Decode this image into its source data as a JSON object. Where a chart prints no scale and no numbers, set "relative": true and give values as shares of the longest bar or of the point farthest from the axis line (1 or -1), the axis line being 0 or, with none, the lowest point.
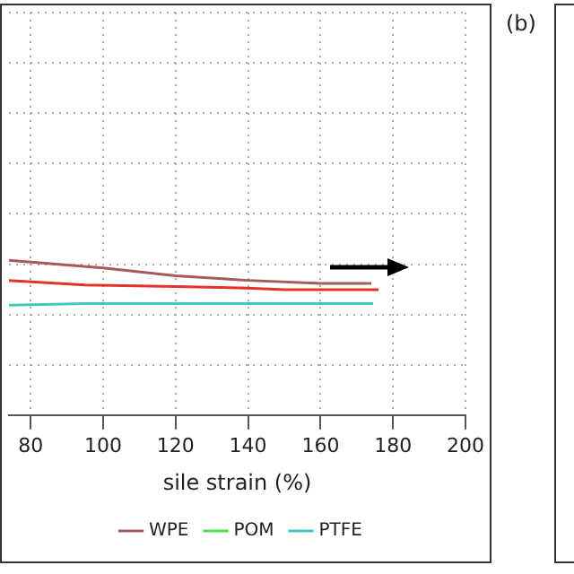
{
  "chart_data": {
    "type": "line",
    "relative": true,
    "xlabel": "sile strain (%)",
    "xlim": [
      74,
      200
    ],
    "xticks": [
      80,
      100,
      120,
      140,
      160,
      180,
      200
    ],
    "grid": true,
    "legend": "bottom",
    "marker": "none",
    "line_style": "solid",
    "annotations": [
      "(b)"
    ],
    "series": [
      {
        "name": "WPE",
        "color": "#a85a5a",
        "x": [
          74,
          100,
          120,
          140,
          160,
          174
        ],
        "values": [
          1.0,
          0.95,
          0.9,
          0.87,
          0.85,
          0.85
        ]
      },
      {
        "color": "#e8302a",
        "x": [
          74,
          95,
          120,
          140,
          150,
          176
        ],
        "values": [
          0.87,
          0.84,
          0.83,
          0.82,
          0.81,
          0.81
        ]
      },
      {
        "name": "POM",
        "color": "#50e050"
      },
      {
        "name": "PTFE",
        "color": "#40c8c0",
        "x": [
          74,
          95,
          174.5
        ],
        "values": [
          0.71,
          0.72,
          0.72
        ]
      }
    ]
  }
}
